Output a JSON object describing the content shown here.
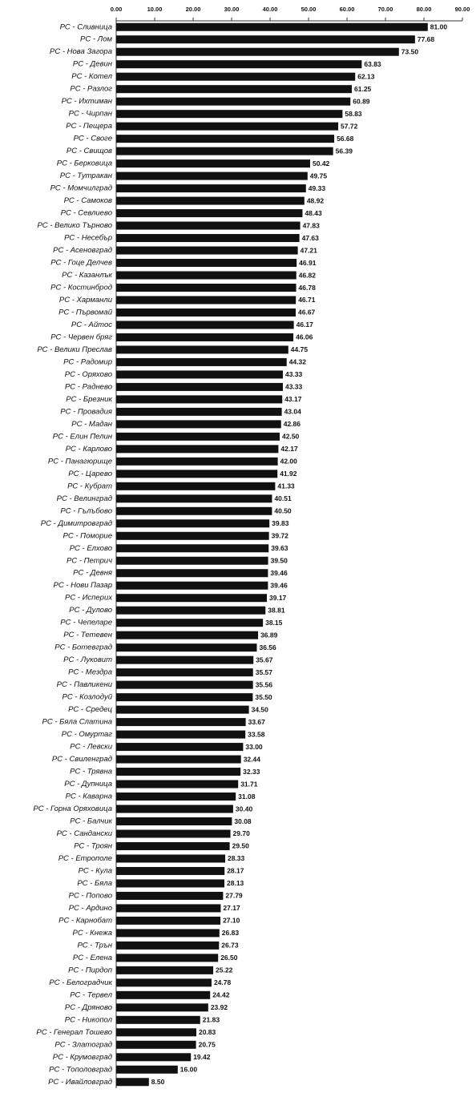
{
  "chart_data": {
    "type": "bar",
    "orientation": "horizontal",
    "color": "#111111",
    "grid": false,
    "categories": [
      "РС - Сливница",
      "РС - Лом",
      "РС - Нова Загора",
      "РС - Девин",
      "РС - Котел",
      "РС - Разлог",
      "РС - Ихтиман",
      "РС - Чирпан",
      "РС - Пещера",
      "РС - Своге",
      "РС - Свищов",
      "РС - Берковица",
      "РС - Тутракан",
      "РС - Момчилград",
      "РС - Самоков",
      "РС - Севлиево",
      "РС - Велико Търново",
      "РС - Несебър",
      "РС - Асеновград",
      "РС - Гоце Делчев",
      "РС - Казанлък",
      "РС - Костинброд",
      "РС - Харманли",
      "РС - Първомай",
      "РС - Айтос",
      "РС - Червен бряг",
      "РС - Велики Преслав",
      "РС - Радомир",
      "РС - Оряхово",
      "РС - Раднево",
      "РС - Брезник",
      "РС - Провадия",
      "РС - Мадан",
      "РС - Елин Пелин",
      "РС - Карлово",
      "РС - Панагюрище",
      "РС - Царево",
      "РС - Кубрат",
      "РС - Велинград",
      "РС - Гълъбово",
      "РС - Димитровград",
      "РС - Поморие",
      "РС - Елхово",
      "РС - Петрич",
      "РС - Девня",
      "РС - Нови Пазар",
      "РС - Исперих",
      "РС - Дулово",
      "РС - Чепеларе",
      "РС - Тетевен",
      "РС - Ботевград",
      "РС - Луковит",
      "РС - Мездра",
      "РС - Павликени",
      "РС - Козлодуй",
      "РС - Средец",
      "РС - Бяла Слатина",
      "РС - Омуртаг",
      "РС - Левски",
      "РС - Свиленград",
      "РС - Трявна",
      "РС - Дупница",
      "РС - Каварна",
      "РС - Горна Оряховица",
      "РС - Балчик",
      "РС - Сандански",
      "РС - Троян",
      "РС - Етрополе",
      "РС - Кула",
      "РС - Бяла",
      "РС - Попово",
      "РС - Ардино",
      "РС - Карнобат",
      "РС - Кнежа",
      "РС - Трън",
      "РС - Елена",
      "РС - Пирдоп",
      "РС - Белоградчик",
      "РС - Тервел",
      "РС - Дряново",
      "РС - Никопол",
      "РС - Генерал Тошево",
      "РС - Златоград",
      "РС - Крумовград",
      "РС - Тополовград",
      "РС - Ивайловград"
    ],
    "values": [
      81,
      77.68,
      73.5,
      63.83,
      62.13,
      61.25,
      60.89,
      58.83,
      57.72,
      56.68,
      56.39,
      50.42,
      49.75,
      49.33,
      48.92,
      48.43,
      47.83,
      47.63,
      47.21,
      46.91,
      46.82,
      46.78,
      46.71,
      46.67,
      46.17,
      46.06,
      44.75,
      44.32,
      43.33,
      43.33,
      43.17,
      43.04,
      42.86,
      42.5,
      42.17,
      42,
      41.92,
      41.33,
      40.51,
      40.5,
      39.83,
      39.72,
      39.63,
      39.5,
      39.46,
      39.46,
      39.17,
      38.81,
      38.15,
      36.89,
      36.56,
      35.67,
      35.57,
      35.56,
      35.5,
      34.5,
      33.67,
      33.58,
      33,
      32.44,
      32.33,
      31.71,
      31.08,
      30.4,
      30.08,
      29.7,
      29.5,
      28.33,
      28.17,
      28.13,
      27.79,
      27.17,
      27.1,
      26.83,
      26.73,
      26.5,
      25.22,
      24.78,
      24.42,
      23.92,
      21.83,
      20.83,
      20.75,
      19.42,
      16,
      8.5
    ],
    "value_labels": [
      "81.00",
      "77.68",
      "73.50",
      "63.83",
      "62.13",
      "61.25",
      "60.89",
      "58.83",
      "57.72",
      "56.68",
      "56.39",
      "50.42",
      "49.75",
      "49.33",
      "48.92",
      "48.43",
      "47.83",
      "47.63",
      "47.21",
      "46.91",
      "46.82",
      "46.78",
      "46.71",
      "46.67",
      "46.17",
      "46.06",
      "44.75",
      "44.32",
      "43.33",
      "43.33",
      "43.17",
      "43.04",
      "42.86",
      "42.50",
      "42.17",
      "42.00",
      "41.92",
      "41.33",
      "40.51",
      "40.50",
      "39.83",
      "39.72",
      "39.63",
      "39.50",
      "39.46",
      "39.46",
      "39.17",
      "38.81",
      "38.15",
      "36.89",
      "36.56",
      "35.67",
      "35.57",
      "35.56",
      "35.50",
      "34.50",
      "33.67",
      "33.58",
      "33.00",
      "32.44",
      "32.33",
      "31.71",
      "31.08",
      "30.40",
      "30.08",
      "29.70",
      "29.50",
      "28.33",
      "28.17",
      "28.13",
      "27.79",
      "27.17",
      "27.10",
      "26.83",
      "26.73",
      "26.50",
      "25.22",
      "24.78",
      "24.42",
      "23.92",
      "21.83",
      "20.83",
      "20.75",
      "19.42",
      "16.00",
      "8.50"
    ],
    "xlim": [
      0,
      90
    ],
    "xticks": [
      {
        "value": 0,
        "label": "0.00"
      },
      {
        "value": 10,
        "label": "10.00"
      },
      {
        "value": 20,
        "label": "20.00"
      },
      {
        "value": 30,
        "label": "30.00"
      },
      {
        "value": 40,
        "label": "40.00"
      },
      {
        "value": 50,
        "label": "50.00"
      },
      {
        "value": 60,
        "label": "60.00"
      },
      {
        "value": 70,
        "label": "70.00"
      },
      {
        "value": 80,
        "label": "80.00"
      },
      {
        "value": 90,
        "label": "90.00"
      }
    ]
  }
}
